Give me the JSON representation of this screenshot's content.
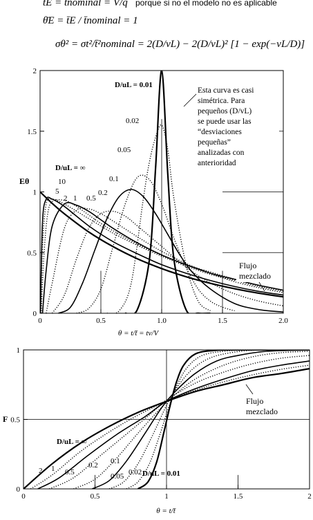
{
  "equations": {
    "line1": "t̄E = t̄nominal = V/q",
    "line1_note": "porque si no el modelo no es aplicable",
    "line2": "θ̄E = t̄E / t̄nominal = 1",
    "line3": "σθ² = σt²/t̄²nominal = 2(D/vL) − 2(D/vL)² [1 − exp(−vL/D)]"
  },
  "chart_data": [
    {
      "type": "line",
      "ylabel": "Eθ",
      "xlabel": "θ = t/t̄ = tv/V",
      "xlim": [
        0,
        2.0
      ],
      "ylim": [
        0,
        2
      ],
      "xticks": [
        "0",
        "0.5",
        "1.0",
        "1.5",
        "2.0"
      ],
      "yticks": [
        "0",
        "0.5",
        "1",
        "1.5",
        "2"
      ],
      "grid": "partial",
      "legend_param": "D/uL",
      "curve_labels": [
        "D/uL = 0.01",
        "0.02",
        "0.05",
        "0.1",
        "0.2",
        "0.5",
        "1",
        "2",
        "5",
        "10",
        "D/uL = ∞"
      ],
      "annotations": {
        "note": [
          "Esta curva es casi",
          "simétrica. Para",
          "pequeños (D/vL)",
          "se puede usar las",
          "“desviaciones",
          "pequeñas”",
          "analizadas con",
          "anterioridad"
        ],
        "mixed": [
          "Flujo",
          "mezclado"
        ]
      },
      "series": [
        {
          "name": "0.01",
          "x": [
            0.7,
            0.8,
            0.9,
            0.95,
            1.0,
            1.05,
            1.1,
            1.2,
            1.3,
            1.4
          ],
          "y": [
            0.0,
            0.03,
            0.45,
            1.2,
            2.0,
            1.15,
            0.45,
            0.03,
            0.0,
            0.0
          ]
        },
        {
          "name": "0.02",
          "x": [
            0.55,
            0.65,
            0.75,
            0.85,
            0.9,
            0.95,
            1.0,
            1.05,
            1.1,
            1.2,
            1.3,
            1.4
          ],
          "y": [
            0.0,
            0.02,
            0.25,
            0.95,
            1.25,
            1.45,
            1.55,
            1.35,
            0.95,
            0.4,
            0.1,
            0.02
          ]
        },
        {
          "name": "0.05",
          "x": [
            0.3,
            0.4,
            0.5,
            0.6,
            0.7,
            0.8,
            0.9,
            1.0,
            1.1,
            1.2,
            1.3,
            1.4,
            1.5,
            1.6
          ],
          "y": [
            0.0,
            0.04,
            0.2,
            0.55,
            0.9,
            1.12,
            1.1,
            0.9,
            0.62,
            0.38,
            0.2,
            0.1,
            0.05,
            0.02
          ]
        },
        {
          "name": "0.1",
          "x": [
            0.15,
            0.25,
            0.35,
            0.45,
            0.55,
            0.65,
            0.75,
            0.85,
            0.95,
            1.05,
            1.15,
            1.25,
            1.4,
            1.6,
            1.8,
            2.0
          ],
          "y": [
            0.0,
            0.05,
            0.25,
            0.52,
            0.78,
            0.96,
            1.02,
            0.96,
            0.82,
            0.65,
            0.48,
            0.34,
            0.2,
            0.08,
            0.03,
            0.01
          ]
        },
        {
          "name": "0.2",
          "x": [
            0.1,
            0.2,
            0.3,
            0.4,
            0.5,
            0.6,
            0.7,
            0.8,
            1.0,
            1.2,
            1.4,
            1.6,
            1.8,
            2.0
          ],
          "y": [
            0.0,
            0.15,
            0.45,
            0.7,
            0.82,
            0.84,
            0.8,
            0.72,
            0.55,
            0.38,
            0.25,
            0.16,
            0.1,
            0.06
          ]
        },
        {
          "name": "0.5",
          "x": [
            0.05,
            0.1,
            0.2,
            0.3,
            0.4,
            0.5,
            0.6,
            0.8,
            1.0,
            1.2,
            1.4,
            1.6,
            1.8,
            2.0
          ],
          "y": [
            0.0,
            0.25,
            0.7,
            0.85,
            0.86,
            0.82,
            0.76,
            0.63,
            0.51,
            0.41,
            0.33,
            0.26,
            0.21,
            0.17
          ]
        },
        {
          "name": "1",
          "x": [
            0.02,
            0.05,
            0.1,
            0.2,
            0.3,
            0.4,
            0.5,
            0.6,
            0.8,
            1.0,
            1.2,
            1.4,
            1.6,
            1.8,
            2.0
          ],
          "y": [
            0.0,
            0.35,
            0.72,
            0.9,
            0.89,
            0.84,
            0.77,
            0.7,
            0.58,
            0.48,
            0.4,
            0.33,
            0.28,
            0.23,
            0.19
          ]
        },
        {
          "name": "2",
          "x": [
            0.01,
            0.03,
            0.06,
            0.1,
            0.2,
            0.3,
            0.4,
            0.5,
            0.6,
            0.8,
            1.0,
            1.2,
            1.4,
            1.6,
            1.8,
            2.0
          ],
          "y": [
            0.0,
            0.45,
            0.8,
            0.92,
            0.93,
            0.88,
            0.81,
            0.74,
            0.68,
            0.57,
            0.48,
            0.4,
            0.34,
            0.28,
            0.23,
            0.19
          ]
        },
        {
          "name": "5",
          "x": [
            0.005,
            0.02,
            0.05,
            0.1,
            0.2,
            0.4,
            0.6,
            0.8,
            1.0,
            1.2,
            1.4,
            1.6,
            1.8,
            2.0
          ],
          "y": [
            0.0,
            0.55,
            0.9,
            0.94,
            0.9,
            0.78,
            0.66,
            0.56,
            0.47,
            0.39,
            0.32,
            0.27,
            0.22,
            0.18
          ]
        },
        {
          "name": "10",
          "x": [
            0.003,
            0.02,
            0.05,
            0.1,
            0.2,
            0.4,
            0.6,
            0.8,
            1.0,
            1.2,
            1.4,
            1.6,
            1.8,
            2.0
          ],
          "y": [
            0.0,
            0.75,
            0.94,
            0.94,
            0.88,
            0.72,
            0.59,
            0.49,
            0.4,
            0.33,
            0.27,
            0.22,
            0.18,
            0.15
          ]
        },
        {
          "name": "∞",
          "x": [
            0.0,
            0.1,
            0.2,
            0.4,
            0.6,
            0.8,
            1.0,
            1.2,
            1.4,
            1.6,
            1.8,
            2.0
          ],
          "y": [
            1.0,
            0.905,
            0.819,
            0.67,
            0.549,
            0.449,
            0.368,
            0.301,
            0.247,
            0.202,
            0.165,
            0.135
          ]
        }
      ]
    },
    {
      "type": "line",
      "ylabel": "F",
      "xlabel": "θ = t/t̄",
      "xlim": [
        0,
        2
      ],
      "ylim": [
        0,
        1
      ],
      "xticks": [
        "0",
        "0.5",
        "1",
        "1.5",
        "2"
      ],
      "yticks": [
        "0",
        "0.5",
        "1"
      ],
      "grid": "partial",
      "curve_labels": [
        "D/uL = ∞",
        "2",
        "1",
        "0.5",
        "0.2",
        "0.1",
        "0.05",
        "0.02",
        "D/uL = 0.01"
      ],
      "annotations": {
        "mixed": [
          "Flujo",
          "mezclado"
        ]
      },
      "series": [
        {
          "name": "∞",
          "x": [
            0,
            0.2,
            0.4,
            0.6,
            0.8,
            1.0,
            1.2,
            1.4,
            1.6,
            1.8,
            2.0
          ],
          "y": [
            0,
            0.18,
            0.33,
            0.45,
            0.55,
            0.63,
            0.7,
            0.75,
            0.8,
            0.83,
            0.865
          ]
        },
        {
          "name": "2",
          "x": [
            0.05,
            0.2,
            0.4,
            0.6,
            0.8,
            1.0,
            1.2,
            1.4,
            1.6,
            1.8,
            2.0
          ],
          "y": [
            0,
            0.1,
            0.27,
            0.41,
            0.53,
            0.63,
            0.71,
            0.77,
            0.82,
            0.86,
            0.89
          ]
        },
        {
          "name": "1",
          "x": [
            0.1,
            0.25,
            0.45,
            0.65,
            0.85,
            1.0,
            1.2,
            1.4,
            1.6,
            1.8,
            2.0
          ],
          "y": [
            0,
            0.08,
            0.24,
            0.39,
            0.52,
            0.63,
            0.72,
            0.79,
            0.85,
            0.89,
            0.92
          ]
        },
        {
          "name": "0.5",
          "x": [
            0.18,
            0.35,
            0.55,
            0.75,
            0.9,
            1.0,
            1.2,
            1.4,
            1.6,
            1.8,
            2.0
          ],
          "y": [
            0,
            0.08,
            0.25,
            0.42,
            0.55,
            0.64,
            0.76,
            0.84,
            0.9,
            0.94,
            0.96
          ]
        },
        {
          "name": "0.2",
          "x": [
            0.35,
            0.5,
            0.65,
            0.8,
            0.95,
            1.05,
            1.2,
            1.4,
            1.6,
            1.8,
            2.0
          ],
          "y": [
            0,
            0.07,
            0.22,
            0.4,
            0.57,
            0.67,
            0.79,
            0.89,
            0.95,
            0.98,
            0.99
          ]
        },
        {
          "name": "0.1",
          "x": [
            0.48,
            0.6,
            0.72,
            0.85,
            0.97,
            1.07,
            1.2,
            1.35,
            1.5,
            1.7,
            2.0
          ],
          "y": [
            0,
            0.06,
            0.2,
            0.4,
            0.59,
            0.71,
            0.83,
            0.92,
            0.96,
            0.99,
            1.0
          ]
        },
        {
          "name": "0.05",
          "x": [
            0.6,
            0.7,
            0.8,
            0.9,
            1.0,
            1.08,
            1.18,
            1.3,
            1.45,
            1.65,
            2.0
          ],
          "y": [
            0,
            0.05,
            0.18,
            0.38,
            0.6,
            0.74,
            0.86,
            0.94,
            0.98,
            1.0,
            1.0
          ]
        },
        {
          "name": "0.02",
          "x": [
            0.72,
            0.8,
            0.88,
            0.95,
            1.02,
            1.08,
            1.15,
            1.25,
            1.4,
            1.6,
            2.0
          ],
          "y": [
            0,
            0.05,
            0.18,
            0.38,
            0.6,
            0.76,
            0.88,
            0.96,
            0.99,
            1.0,
            1.0
          ]
        },
        {
          "name": "0.01",
          "x": [
            0.8,
            0.87,
            0.93,
            0.98,
            1.03,
            1.07,
            1.12,
            1.2,
            1.32,
            1.5,
            2.0
          ],
          "y": [
            0,
            0.05,
            0.19,
            0.4,
            0.62,
            0.77,
            0.89,
            0.97,
            0.995,
            1.0,
            1.0
          ]
        }
      ]
    }
  ]
}
